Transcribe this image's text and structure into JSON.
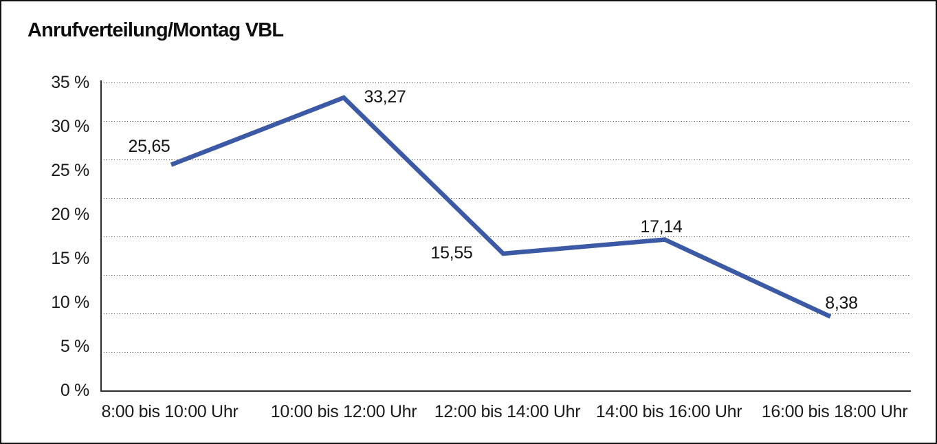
{
  "chart_data": {
    "type": "line",
    "title": "Anrufverteilung/Montag VBL",
    "categories": [
      "8:00 bis 10:00 Uhr",
      "10:00 bis 12:00 Uhr",
      "12:00 bis 14:00 Uhr",
      "14:00 bis 16:00 Uhr",
      "16:00 bis 18:00 Uhr"
    ],
    "values": [
      25.65,
      33.27,
      15.55,
      17.14,
      8.38
    ],
    "data_labels": [
      "25,65",
      "33,27",
      "15,55",
      "17,14",
      "8,38"
    ],
    "y_tick_values": [
      35,
      30,
      25,
      20,
      15,
      10,
      5,
      0
    ],
    "y_tick_labels": [
      "35 %",
      "30 %",
      "25 %",
      "20 %",
      "15 %",
      "10 %",
      "5 %",
      "0 %"
    ],
    "ylim": [
      0,
      35
    ],
    "xlabel": "",
    "ylabel": "",
    "grid": {
      "horizontal": "dotted",
      "intervals": 8
    },
    "legend": "none",
    "line_color": "#3B59A5"
  }
}
